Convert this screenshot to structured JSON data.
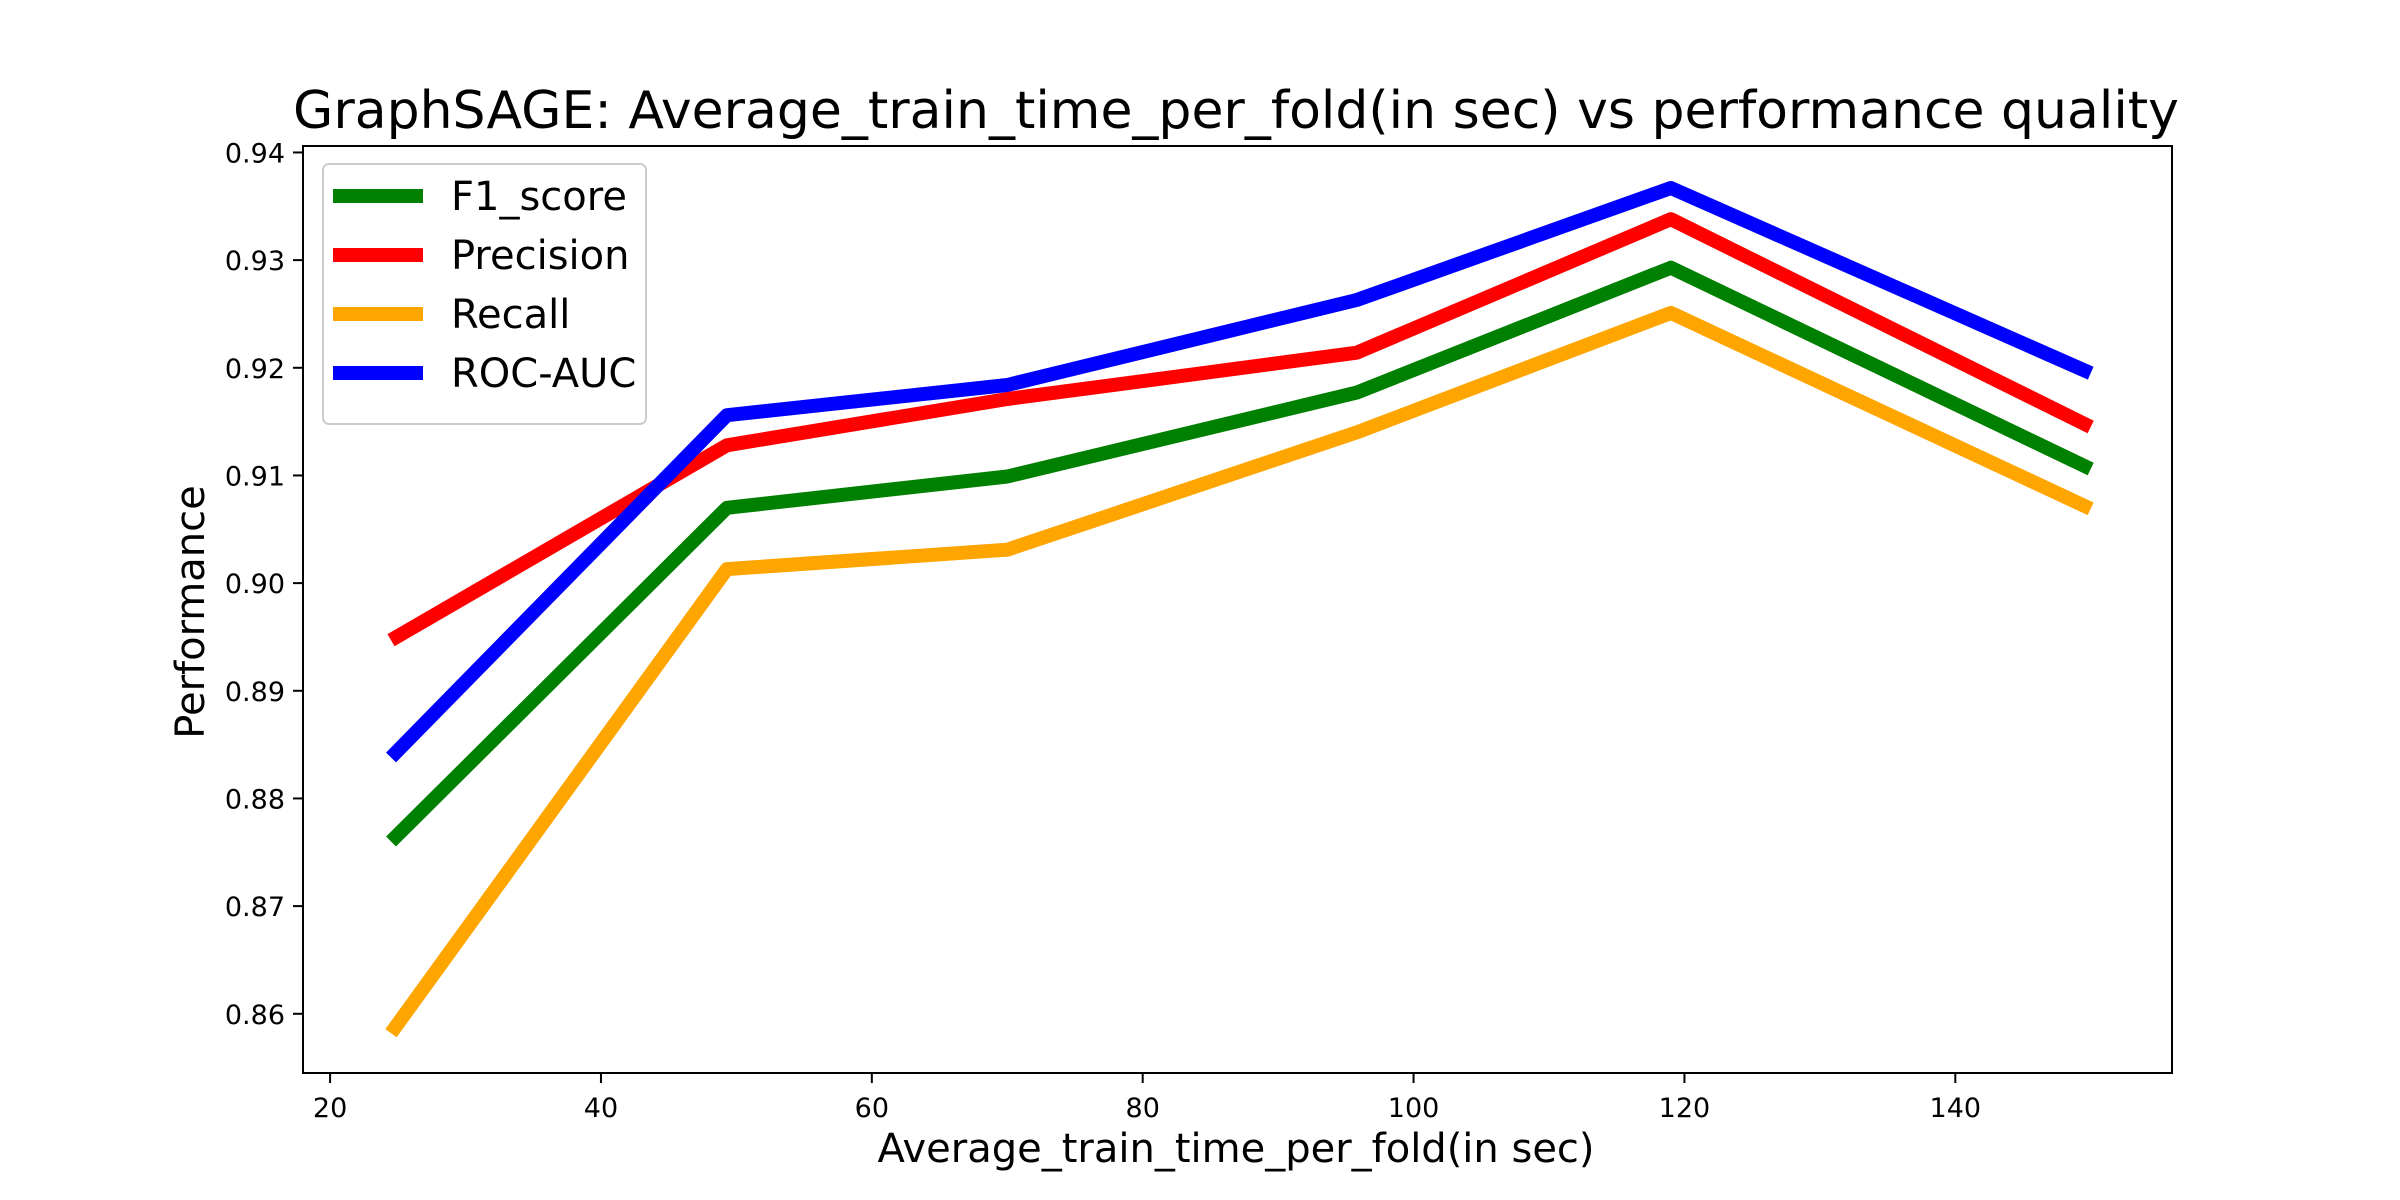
{
  "chart_data": {
    "type": "line",
    "title": "GraphSAGE: Average_train_time_per_fold(in sec) vs performance quality",
    "xlabel": "Average_train_time_per_fold(in sec)",
    "ylabel": "Performance",
    "xlim": [
      18,
      156
    ],
    "ylim": [
      0.8545,
      0.9406
    ],
    "xticks": [
      20,
      40,
      60,
      80,
      100,
      120,
      140
    ],
    "xtick_labels": [
      "20",
      "40",
      "60",
      "80",
      "100",
      "120",
      "140"
    ],
    "yticks": [
      0.86,
      0.87,
      0.88,
      0.89,
      0.9,
      0.91,
      0.92,
      0.93,
      0.94
    ],
    "ytick_labels": [
      "0.86",
      "0.87",
      "0.88",
      "0.89",
      "0.90",
      "0.91",
      "0.92",
      "0.93",
      "0.94"
    ],
    "x": [
      24.5,
      49.3,
      70.0,
      95.8,
      119.0,
      150.0
    ],
    "grid": false,
    "legend_position": "upper-left",
    "series": [
      {
        "name": "F1_score",
        "color": "#008000",
        "values": [
          0.876,
          0.907,
          0.9099,
          0.9177,
          0.9293,
          0.9106
        ]
      },
      {
        "name": "Precision",
        "color": "#ff0000",
        "values": [
          0.8947,
          0.9128,
          0.9171,
          0.9214,
          0.9338,
          0.9145
        ]
      },
      {
        "name": "Recall",
        "color": "#ffa500",
        "values": [
          0.8582,
          0.9013,
          0.9031,
          0.914,
          0.9251,
          0.9069
        ]
      },
      {
        "name": "ROC-AUC",
        "color": "#0000ff",
        "values": [
          0.8838,
          0.9156,
          0.9184,
          0.9263,
          0.9367,
          0.9195
        ]
      }
    ]
  }
}
